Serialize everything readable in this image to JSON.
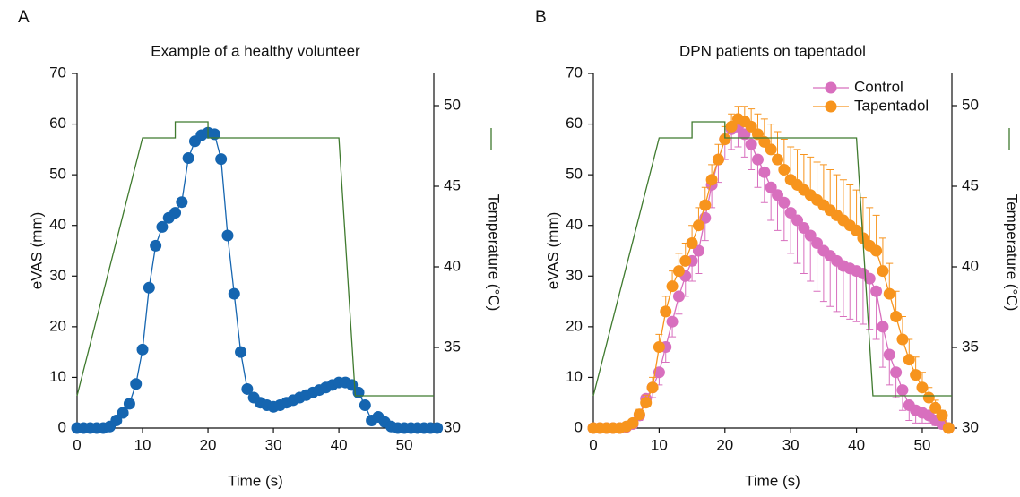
{
  "chart_data": [
    {
      "type": "line",
      "panel_label": "A",
      "title": "Example of a healthy volunteer",
      "x_label": "Time (s)",
      "y_label": "eVAS (mm)",
      "y2_label": "Temperature (°C)",
      "xlim": [
        0,
        54.5
      ],
      "xticks": [
        0,
        10,
        20,
        30,
        40,
        50
      ],
      "ylim": [
        0,
        70
      ],
      "yticks": [
        0,
        10,
        20,
        30,
        40,
        50,
        60,
        70
      ],
      "y2lim": [
        30,
        52
      ],
      "y2ticks": [
        30,
        35,
        40,
        45,
        50
      ],
      "x": [
        0,
        1,
        2,
        3,
        4,
        5,
        6,
        7,
        8,
        9,
        10,
        11,
        12,
        13,
        14,
        15,
        16,
        17,
        18,
        19,
        20,
        21,
        22,
        23,
        24,
        25,
        26,
        27,
        28,
        29,
        30,
        31,
        32,
        33,
        34,
        35,
        36,
        37,
        38,
        39,
        40,
        41,
        42,
        43,
        44,
        45,
        46,
        47,
        48,
        49,
        50,
        51,
        52,
        53,
        54,
        55
      ],
      "series": [
        {
          "color": "#1565b0",
          "markers": true,
          "values": [
            0,
            0,
            0,
            0,
            0,
            0.3,
            1.5,
            3,
            4.8,
            8.7,
            15.5,
            27.7,
            36,
            39.7,
            41.5,
            42.5,
            44.6,
            53.3,
            56.6,
            57.8,
            58.3,
            58,
            53.1,
            38,
            26.5,
            15,
            7.7,
            6,
            5,
            4.5,
            4.2,
            4.5,
            5,
            5.5,
            6,
            6.5,
            7,
            7.5,
            8,
            8.5,
            9,
            9,
            8.5,
            7,
            4.5,
            1.5,
            2.2,
            1.2,
            0.3,
            0,
            0,
            0,
            0,
            0,
            0,
            0
          ]
        },
        {
          "color": "#3f7a2e",
          "markers": false,
          "axis": "y2",
          "x": [
            0,
            10,
            15,
            15,
            20,
            20,
            40,
            42.5,
            54.5
          ],
          "values": [
            32,
            48,
            48,
            49,
            49,
            48,
            48,
            32,
            32
          ]
        }
      ]
    },
    {
      "type": "line",
      "panel_label": "B",
      "title": "DPN patients on tapentadol",
      "x_label": "Time (s)",
      "y_label": "eVAS (mm)",
      "y2_label": "Temperature (°C)",
      "legend": "upper right",
      "xlim": [
        0,
        54.5
      ],
      "xticks": [
        0,
        10,
        20,
        30,
        40,
        50
      ],
      "ylim": [
        0,
        70
      ],
      "yticks": [
        0,
        10,
        20,
        30,
        40,
        50,
        60,
        70
      ],
      "y2lim": [
        30,
        52
      ],
      "y2ticks": [
        30,
        35,
        40,
        45,
        50
      ],
      "x": [
        0,
        1,
        2,
        3,
        4,
        5,
        6,
        7,
        8,
        9,
        10,
        11,
        12,
        13,
        14,
        15,
        16,
        17,
        18,
        19,
        20,
        21,
        22,
        23,
        24,
        25,
        26,
        27,
        28,
        29,
        30,
        31,
        32,
        33,
        34,
        35,
        36,
        37,
        38,
        39,
        40,
        41,
        42,
        43,
        44,
        45,
        46,
        47,
        48,
        49,
        50,
        51,
        52,
        53,
        54
      ],
      "series": [
        {
          "name": "Control",
          "color": "#d86fbe",
          "markers": true,
          "error_direction": "down",
          "values": [
            0,
            0,
            0,
            0,
            0,
            0.2,
            0.8,
            2.5,
            5.8,
            8,
            11,
            16,
            21,
            26,
            30,
            33,
            35,
            41.5,
            48,
            53,
            57,
            59,
            59.5,
            58,
            56,
            53,
            50.5,
            47.5,
            46,
            44.5,
            42.5,
            41,
            39.5,
            38,
            36.5,
            35,
            34,
            33,
            32,
            31.5,
            31,
            30.5,
            29.5,
            27,
            20,
            14.5,
            11,
            7.5,
            4.5,
            3.5,
            3,
            2.5,
            1.5,
            0.8,
            0
          ],
          "errors": [
            0,
            0,
            0,
            0,
            0,
            0.3,
            0.5,
            1,
            1.5,
            2,
            2.5,
            3,
            3,
            3.5,
            4,
            4,
            4.5,
            4.5,
            4.5,
            4.5,
            4,
            4,
            4,
            4.5,
            5,
            5.5,
            6,
            6.5,
            7,
            7.5,
            8,
            8.5,
            9,
            9,
            9.5,
            10,
            10,
            10,
            10,
            10,
            10,
            10,
            10,
            9.5,
            8,
            6,
            5,
            4,
            3,
            2.5,
            2,
            1.5,
            1,
            0.5,
            0
          ]
        },
        {
          "name": "Tapentadol",
          "color": "#f7941d",
          "markers": true,
          "error_direction": "up",
          "values": [
            0,
            0,
            0,
            0,
            0,
            0.3,
            1,
            2.7,
            5,
            8,
            16,
            23,
            28,
            31,
            33,
            36.5,
            40,
            44,
            49,
            53,
            57,
            59.5,
            61,
            60.5,
            59.5,
            58,
            56.5,
            55,
            53,
            51,
            49,
            48,
            47,
            46,
            45,
            44,
            43,
            42,
            41,
            40,
            39,
            37.5,
            36,
            35,
            31,
            26.5,
            22,
            17.5,
            13.5,
            10.5,
            8,
            6,
            4,
            2.5,
            0
          ],
          "errors": [
            0,
            0,
            0,
            0,
            0,
            0.3,
            0.5,
            1,
            1.5,
            2,
            2.5,
            3,
            3,
            3.5,
            3.5,
            3.5,
            3.5,
            3.5,
            3,
            3,
            2.5,
            2.5,
            2.5,
            3,
            3.5,
            4,
            4.5,
            5,
            5.5,
            6,
            6.5,
            7,
            7,
            7.5,
            7.5,
            8,
            8,
            8,
            8,
            8,
            8,
            8,
            7.5,
            7,
            6.5,
            6,
            5,
            4.5,
            4,
            3.5,
            3,
            2,
            1.5,
            1,
            0
          ]
        },
        {
          "color": "#3f7a2e",
          "markers": false,
          "axis": "y2",
          "x": [
            0,
            10,
            15,
            15,
            20,
            20,
            40,
            42.5,
            54.5
          ],
          "values": [
            32,
            48,
            48,
            49,
            49,
            48,
            48,
            32,
            32
          ]
        }
      ]
    }
  ]
}
